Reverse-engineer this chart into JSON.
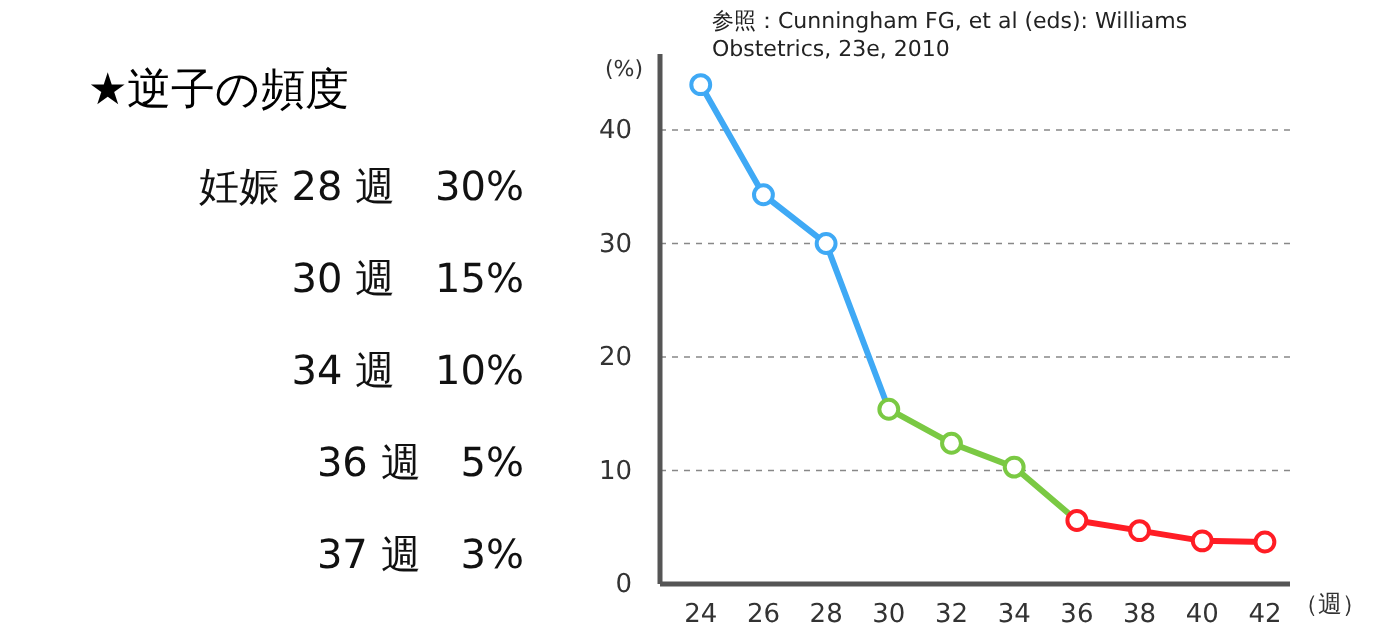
{
  "chart_data": {
    "type": "line",
    "title": "★逆子の頻度",
    "ylabel": "(%)",
    "xlabel": "（週）",
    "annotations": [
      "妊娠 28 週　30%",
      "30 週　15%",
      "34 週　10%",
      "36 週　5%",
      "37 週　3%",
      "参照：Cunningham FG, et al (eds): Williams Obstetrics, 23e, 2010"
    ],
    "series": [
      {
        "color": "#3fa9f5",
        "x": [
          24,
          26,
          28,
          30
        ],
        "values": [
          44,
          34.3,
          30,
          15.4
        ]
      },
      {
        "color": "#7ac943",
        "x": [
          30,
          32,
          34,
          36
        ],
        "values": [
          15.4,
          12.4,
          10.3,
          5.6
        ]
      },
      {
        "color": "#ff1d25",
        "x": [
          36,
          38,
          40,
          42
        ],
        "values": [
          5.6,
          4.7,
          3.8,
          3.7
        ]
      }
    ],
    "xlim": [
      22.7,
      42.8
    ],
    "xticks": [
      24,
      26,
      28,
      30,
      32,
      34,
      36,
      38,
      40,
      42
    ],
    "ylim": [
      0,
      46.7
    ],
    "yticks": [
      0,
      10,
      20,
      30,
      40
    ],
    "grid": "y",
    "marker": "circle",
    "line_style": "solid"
  }
}
